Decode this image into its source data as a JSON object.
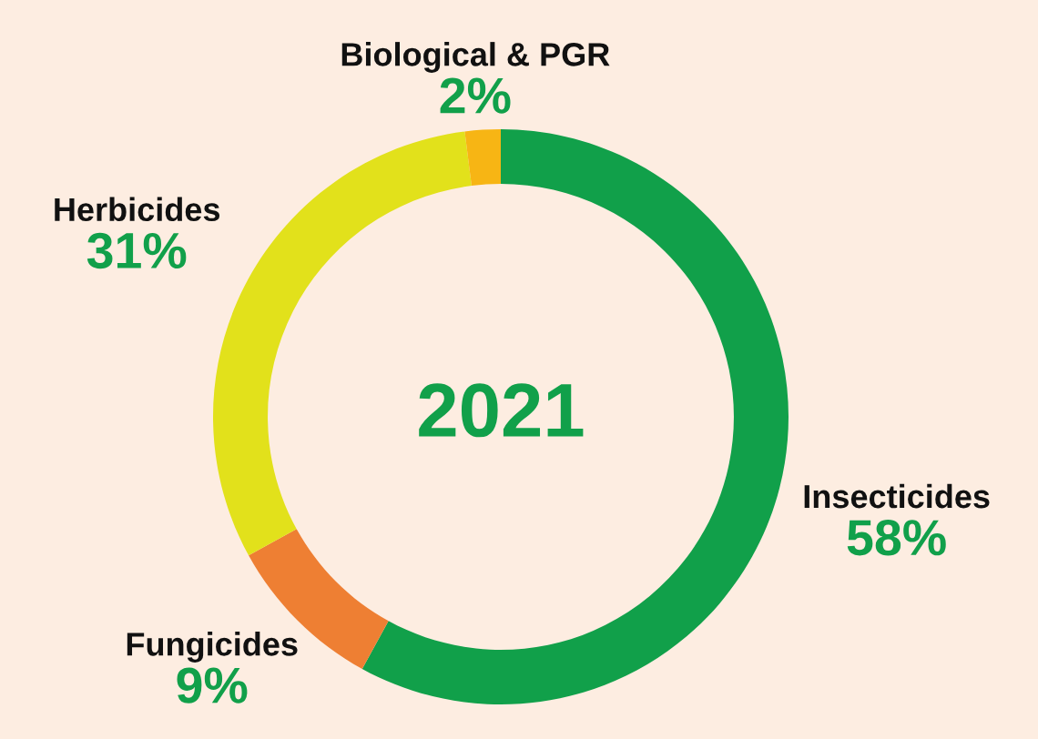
{
  "chart_data": {
    "type": "donut",
    "categories": [
      "Insecticides",
      "Fungicides",
      "Herbicides",
      "Biological & PGR"
    ],
    "values": [
      58,
      9,
      31,
      2
    ],
    "value_labels": [
      "58%",
      "9%",
      "31%",
      "2%"
    ],
    "colors": [
      "#11a04a",
      "#ee7f33",
      "#e2e11b",
      "#f7b514"
    ],
    "annotations": [
      "2021"
    ],
    "legend": false
  }
}
